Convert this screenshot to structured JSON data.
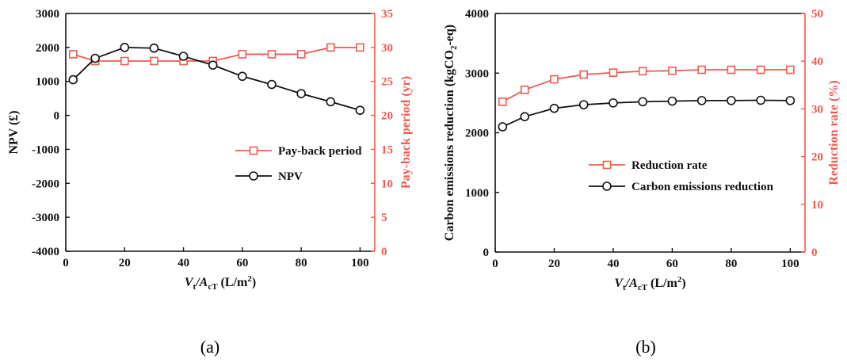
{
  "colors": {
    "primary": "#111111",
    "secondary": "#f05a4f"
  },
  "panels": {
    "a": {
      "label": "(a)"
    },
    "b": {
      "label": "(b)"
    }
  },
  "chart_data": [
    {
      "id": "a",
      "type": "line",
      "x": [
        2.5,
        10,
        20,
        30,
        40,
        50,
        60,
        70,
        80,
        90,
        100
      ],
      "xlim": [
        0,
        105
      ],
      "xticks": [
        0,
        20,
        40,
        60,
        80,
        100
      ],
      "xlabel": {
        "base": "V",
        "sub1": "t",
        "mid": "/A",
        "sub2": "cT",
        "unit": " (L/m",
        "sup": "2",
        "tail": ")"
      },
      "ylabel_left": "NPV (£)",
      "ylabel_right": "Pay-back period (yr)",
      "ylim_left": [
        -4000,
        3000
      ],
      "yticks_left": [
        -4000,
        -3000,
        -2000,
        -1000,
        0,
        1000,
        2000,
        3000
      ],
      "ylim_right": [
        0,
        35
      ],
      "yticks_right": [
        0,
        5,
        10,
        15,
        20,
        25,
        30,
        35
      ],
      "legend_position": "center-right",
      "grid": false,
      "series": [
        {
          "name": "Pay-back period",
          "axis": "right",
          "marker": "square",
          "color": "#f05a4f",
          "values": [
            29,
            28,
            28,
            28,
            28,
            28,
            29,
            29,
            29,
            30,
            30
          ]
        },
        {
          "name": "NPV",
          "axis": "left",
          "marker": "circle",
          "color": "#111111",
          "values": [
            1050,
            1680,
            2000,
            1980,
            1740,
            1480,
            1150,
            910,
            640,
            400,
            150
          ]
        }
      ]
    },
    {
      "id": "b",
      "type": "line",
      "x": [
        2.5,
        10,
        20,
        30,
        40,
        50,
        60,
        70,
        80,
        90,
        100
      ],
      "xlim": [
        0,
        105
      ],
      "xticks": [
        0,
        20,
        40,
        60,
        80,
        100
      ],
      "xlabel": {
        "base": "V",
        "sub1": "t",
        "mid": "/A",
        "sub2": "cT",
        "unit": " (L/m",
        "sup": "2",
        "tail": ")"
      },
      "ylabel_left": {
        "base": "Carbon emissions reduction (kgCO",
        "sub": "2",
        "tail": "-eq)"
      },
      "ylabel_right": "Reduction rate (%)",
      "ylim_left": [
        0,
        4000
      ],
      "yticks_left": [
        0,
        1000,
        2000,
        3000,
        4000
      ],
      "ylim_right": [
        0,
        50
      ],
      "yticks_right": [
        0,
        10,
        20,
        30,
        40,
        50
      ],
      "legend_position": "center-right",
      "grid": false,
      "series": [
        {
          "name": "Reduction rate",
          "axis": "right",
          "marker": "square",
          "color": "#f05a4f",
          "values": [
            31.5,
            34,
            36.2,
            37.2,
            37.6,
            37.9,
            38.0,
            38.2,
            38.2,
            38.2,
            38.2
          ]
        },
        {
          "name": "Carbon emissions reduction",
          "axis": "left",
          "marker": "circle",
          "color": "#111111",
          "values": [
            2100,
            2270,
            2410,
            2470,
            2500,
            2520,
            2530,
            2540,
            2540,
            2545,
            2540
          ]
        }
      ]
    }
  ]
}
